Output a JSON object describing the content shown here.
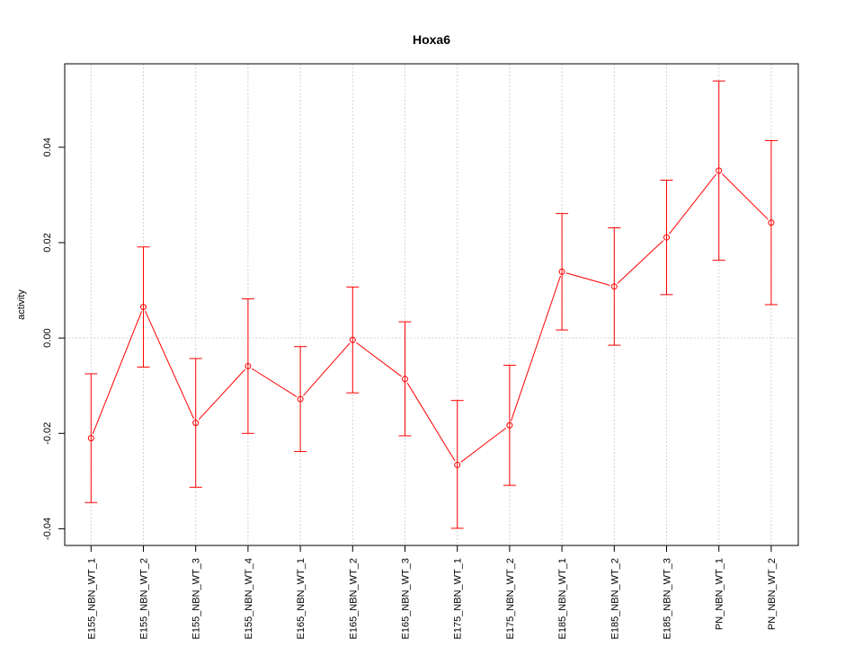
{
  "chart_data": {
    "type": "line",
    "title": "Hoxa6",
    "xlabel": "",
    "ylabel": "activity",
    "ylim": [
      -0.0435,
      0.0575
    ],
    "yticks": [
      -0.04,
      -0.02,
      0.0,
      0.02,
      0.04
    ],
    "ytick_labels": [
      "-0.04",
      "-0.02",
      "0.00",
      "0.02",
      "0.04"
    ],
    "grid": true,
    "legend": "none",
    "series_color": "#ff0000",
    "grid_color": "#d3d3d3",
    "categories": [
      "E155_NBN_WT_1",
      "E155_NBN_WT_2",
      "E155_NBN_WT_3",
      "E155_NBN_WT_4",
      "E165_NBN_WT_1",
      "E165_NBN_WT_2",
      "E165_NBN_WT_3",
      "E175_NBN_WT_1",
      "E175_NBN_WT_2",
      "E185_NBN_WT_1",
      "E185_NBN_WT_2",
      "E185_NBN_WT_3",
      "PN_NBN_WT_1",
      "PN_NBN_WT_2"
    ],
    "values": [
      -0.021,
      0.0065,
      -0.0178,
      -0.0059,
      -0.0128,
      -0.0004,
      -0.0086,
      -0.0266,
      -0.0183,
      0.0139,
      0.0108,
      0.0211,
      0.0351,
      0.0242
    ],
    "upper": [
      -0.0075,
      0.0191,
      -0.0043,
      0.0082,
      -0.0018,
      0.0107,
      0.0034,
      -0.0131,
      -0.0057,
      0.0261,
      0.0231,
      0.0331,
      0.0539,
      0.0414
    ],
    "lower": [
      -0.0345,
      -0.0061,
      -0.0313,
      -0.02,
      -0.0238,
      -0.0115,
      -0.0205,
      -0.0399,
      -0.0309,
      0.0017,
      -0.0015,
      0.0091,
      0.0163,
      0.007
    ]
  }
}
